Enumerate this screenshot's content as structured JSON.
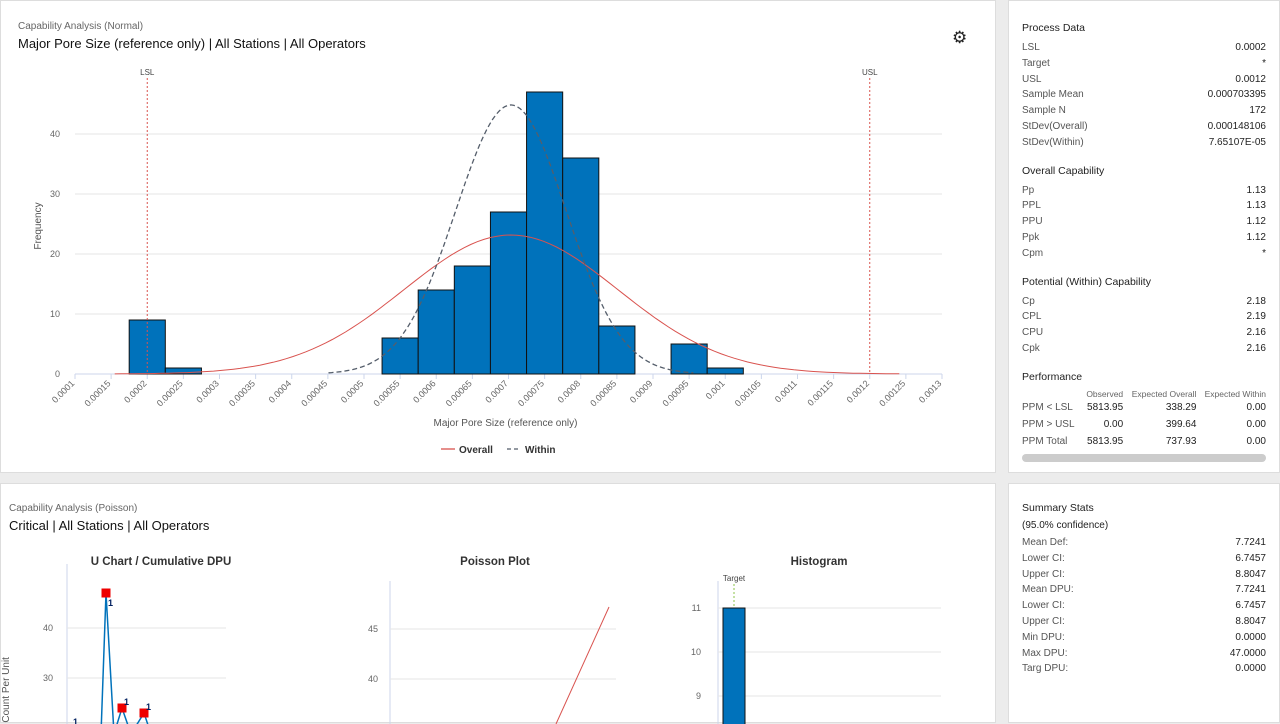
{
  "top": {
    "subtitle": "Capability Analysis (Normal)",
    "title": "Major Pore Size (reference only) | All Stations | All Operators",
    "settings_icon": "gear-icon"
  },
  "chart_data": [
    {
      "type": "bar",
      "xlabel": "Major Pore Size (reference only)",
      "ylabel": "Frequency",
      "x_ticks": [
        "0.0001",
        "0.00015",
        "0.0002",
        "0.00025",
        "0.0003",
        "0.00035",
        "0.0004",
        "0.00045",
        "0.0005",
        "0.00055",
        "0.0006",
        "0.00065",
        "0.0007",
        "0.00075",
        "0.0008",
        "0.00085",
        "0.0009",
        "0.00095",
        "0.001",
        "0.00105",
        "0.0011",
        "0.00115",
        "0.0012",
        "0.00125",
        "0.0013"
      ],
      "y_ticks": [
        0,
        10,
        20,
        30,
        40
      ],
      "xlim": [
        0.0001,
        0.0013
      ],
      "ylim": [
        0,
        50
      ],
      "bins": [
        {
          "x": 0.0002,
          "count": 9
        },
        {
          "x": 0.00025,
          "count": 1
        },
        {
          "x": 0.00055,
          "count": 6
        },
        {
          "x": 0.0006,
          "count": 14
        },
        {
          "x": 0.00065,
          "count": 18
        },
        {
          "x": 0.0007,
          "count": 27
        },
        {
          "x": 0.00075,
          "count": 47
        },
        {
          "x": 0.0008,
          "count": 36
        },
        {
          "x": 0.00085,
          "count": 8
        },
        {
          "x": 0.00095,
          "count": 5
        },
        {
          "x": 0.001,
          "count": 1
        }
      ],
      "bin_width": 5e-05,
      "ref_lines": [
        {
          "label": "LSL",
          "x": 0.0002
        },
        {
          "label": "USL",
          "x": 0.0012
        }
      ],
      "series": [
        {
          "name": "Overall",
          "mean": 0.000703395,
          "sd": 0.000148106,
          "color": "#d9534f",
          "style": "solid"
        },
        {
          "name": "Within",
          "mean": 0.000703395,
          "sd": 7.65107e-05,
          "color": "#555e6b",
          "style": "dashed"
        }
      ],
      "n": 172,
      "bar_color": "#0072bb",
      "legend": "bottom"
    },
    {
      "type": "line",
      "title": "U Chart / Cumulative DPU",
      "ylabel": "e Count Per Unit",
      "y_ticks": [
        30,
        40
      ],
      "points": [
        20,
        47,
        24,
        23
      ],
      "point_labels": [
        "1",
        "1",
        "1",
        "1"
      ]
    },
    {
      "type": "line",
      "title": "Poisson Plot",
      "y_ticks": [
        40,
        45
      ]
    },
    {
      "type": "bar",
      "title": "Histogram",
      "y_ticks": [
        9,
        10,
        11
      ],
      "values": [
        11
      ],
      "target_label": "Target"
    }
  ],
  "process": {
    "title": "Process Data",
    "rows": [
      [
        "LSL",
        "0.0002"
      ],
      [
        "Target",
        "*"
      ],
      [
        "USL",
        "0.0012"
      ],
      [
        "Sample Mean",
        "0.000703395"
      ],
      [
        "Sample N",
        "172"
      ],
      [
        "StDev(Overall)",
        "0.000148106"
      ],
      [
        "StDev(Within)",
        "7.65107E-05"
      ]
    ]
  },
  "overall": {
    "title": "Overall Capability",
    "rows": [
      [
        "Pp",
        "1.13"
      ],
      [
        "PPL",
        "1.13"
      ],
      [
        "PPU",
        "1.12"
      ],
      [
        "Ppk",
        "1.12"
      ],
      [
        "Cpm",
        "*"
      ]
    ]
  },
  "within": {
    "title": "Potential (Within) Capability",
    "rows": [
      [
        "Cp",
        "2.18"
      ],
      [
        "CPL",
        "2.19"
      ],
      [
        "CPU",
        "2.16"
      ],
      [
        "Cpk",
        "2.16"
      ]
    ]
  },
  "performance": {
    "title": "Performance",
    "headers": [
      "",
      "Observed",
      "Expected Overall",
      "Expected Within"
    ],
    "rows": [
      [
        "PPM < LSL",
        "5813.95",
        "338.29",
        "0.00"
      ],
      [
        "PPM > USL",
        "0.00",
        "399.64",
        "0.00"
      ],
      [
        "PPM Total",
        "5813.95",
        "737.93",
        "0.00"
      ]
    ]
  },
  "bottom": {
    "subtitle": "Capability Analysis (Poisson)",
    "title": "Critical | All Stations | All Operators"
  },
  "summary": {
    "title": "Summary Stats",
    "confidence": "(95.0% confidence)",
    "rows": [
      [
        "Mean Def:",
        "7.7241"
      ],
      [
        "Lower CI:",
        "6.7457"
      ],
      [
        "Upper CI:",
        "8.8047"
      ],
      [
        "Mean DPU:",
        "7.7241"
      ],
      [
        "Lower CI:",
        "6.7457"
      ],
      [
        "Upper CI:",
        "8.8047"
      ],
      [
        "Min DPU:",
        "0.0000"
      ],
      [
        "Max DPU:",
        "47.0000"
      ],
      [
        "Targ DPU:",
        "0.0000"
      ]
    ]
  }
}
